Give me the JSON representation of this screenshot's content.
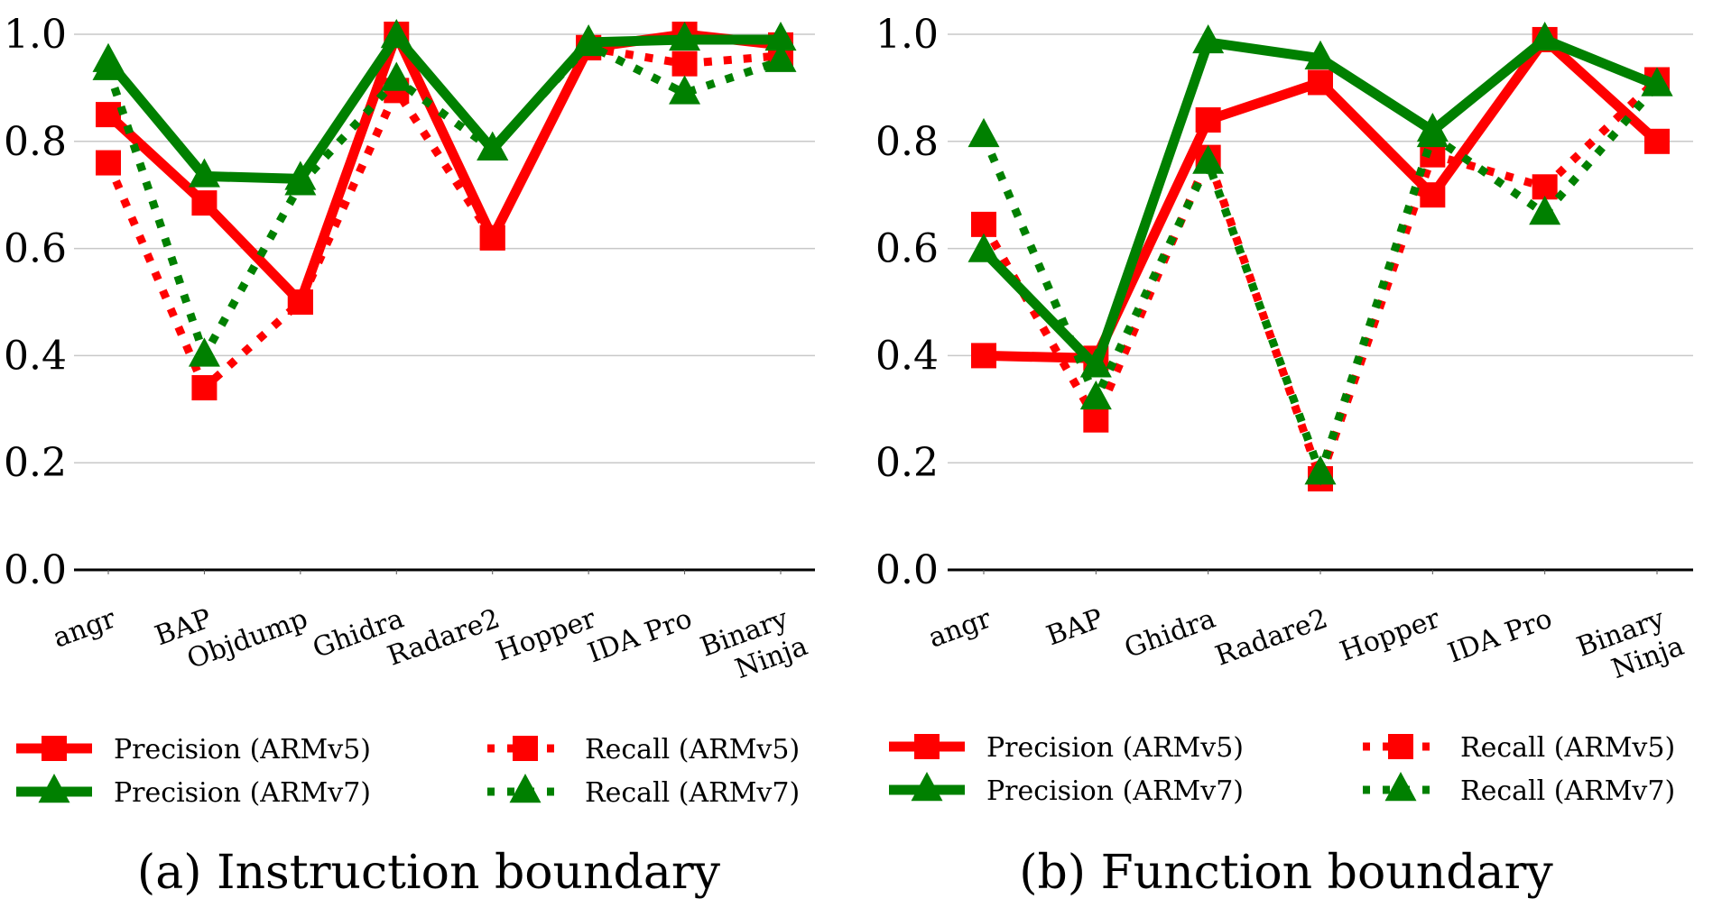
{
  "chart_data": [
    {
      "type": "line",
      "panel": "a",
      "caption": "(a) Instruction boundary",
      "categories": [
        "angr",
        "BAP",
        "Objdump",
        "Ghidra",
        "Radare2",
        "Hopper",
        "IDA Pro",
        "Binary\nNinja"
      ],
      "ylim": [
        0,
        1.0
      ],
      "yticks": [
        "0.0",
        "0.2",
        "0.4",
        "0.6",
        "0.8",
        "1.0"
      ],
      "grid": true,
      "xlabel": "",
      "ylabel": "",
      "legend_position": "bottom",
      "series": [
        {
          "name": "Precision (ARMv5)",
          "color": "#ff0000",
          "style": "solid",
          "marker": "square",
          "values": [
            0.85,
            0.685,
            0.5,
            1.0,
            0.62,
            0.975,
            1.0,
            0.98
          ]
        },
        {
          "name": "Recall (ARMv5)",
          "color": "#ff0000",
          "style": "dotted",
          "marker": "square",
          "values": [
            0.76,
            0.34,
            0.5,
            0.895,
            0.62,
            0.975,
            0.945,
            0.96
          ]
        },
        {
          "name": "Precision (ARMv7)",
          "color": "#008000",
          "style": "solid",
          "marker": "triangle",
          "values": [
            0.95,
            0.735,
            0.73,
            0.995,
            0.785,
            0.985,
            0.99,
            0.99
          ]
        },
        {
          "name": "Recall (ARMv7)",
          "color": "#008000",
          "style": "dotted",
          "marker": "triangle",
          "values": [
            0.935,
            0.4,
            0.72,
            0.915,
            0.785,
            0.98,
            0.89,
            0.95
          ]
        }
      ]
    },
    {
      "type": "line",
      "panel": "b",
      "caption": "(b) Function boundary",
      "categories": [
        "angr",
        "BAP",
        "Ghidra",
        "Radare2",
        "Hopper",
        "IDA Pro",
        "Binary\nNinja"
      ],
      "ylim": [
        0,
        1.0
      ],
      "yticks": [
        "0.0",
        "0.2",
        "0.4",
        "0.6",
        "0.8",
        "1.0"
      ],
      "grid": true,
      "xlabel": "",
      "ylabel": "",
      "legend_position": "bottom",
      "series": [
        {
          "name": "Precision (ARMv5)",
          "color": "#ff0000",
          "style": "solid",
          "marker": "square",
          "values": [
            0.4,
            0.395,
            0.84,
            0.91,
            0.7,
            0.99,
            0.8
          ]
        },
        {
          "name": "Recall (ARMv5)",
          "color": "#ff0000",
          "style": "dotted",
          "marker": "square",
          "values": [
            0.645,
            0.28,
            0.77,
            0.17,
            0.775,
            0.715,
            0.915
          ]
        },
        {
          "name": "Precision (ARMv7)",
          "color": "#008000",
          "style": "solid",
          "marker": "triangle",
          "values": [
            0.595,
            0.38,
            0.985,
            0.955,
            0.82,
            0.99,
            0.905
          ]
        },
        {
          "name": "Recall (ARMv7)",
          "color": "#008000",
          "style": "dotted",
          "marker": "triangle",
          "values": [
            0.81,
            0.32,
            0.76,
            0.18,
            0.81,
            0.665,
            0.905
          ]
        }
      ]
    }
  ]
}
